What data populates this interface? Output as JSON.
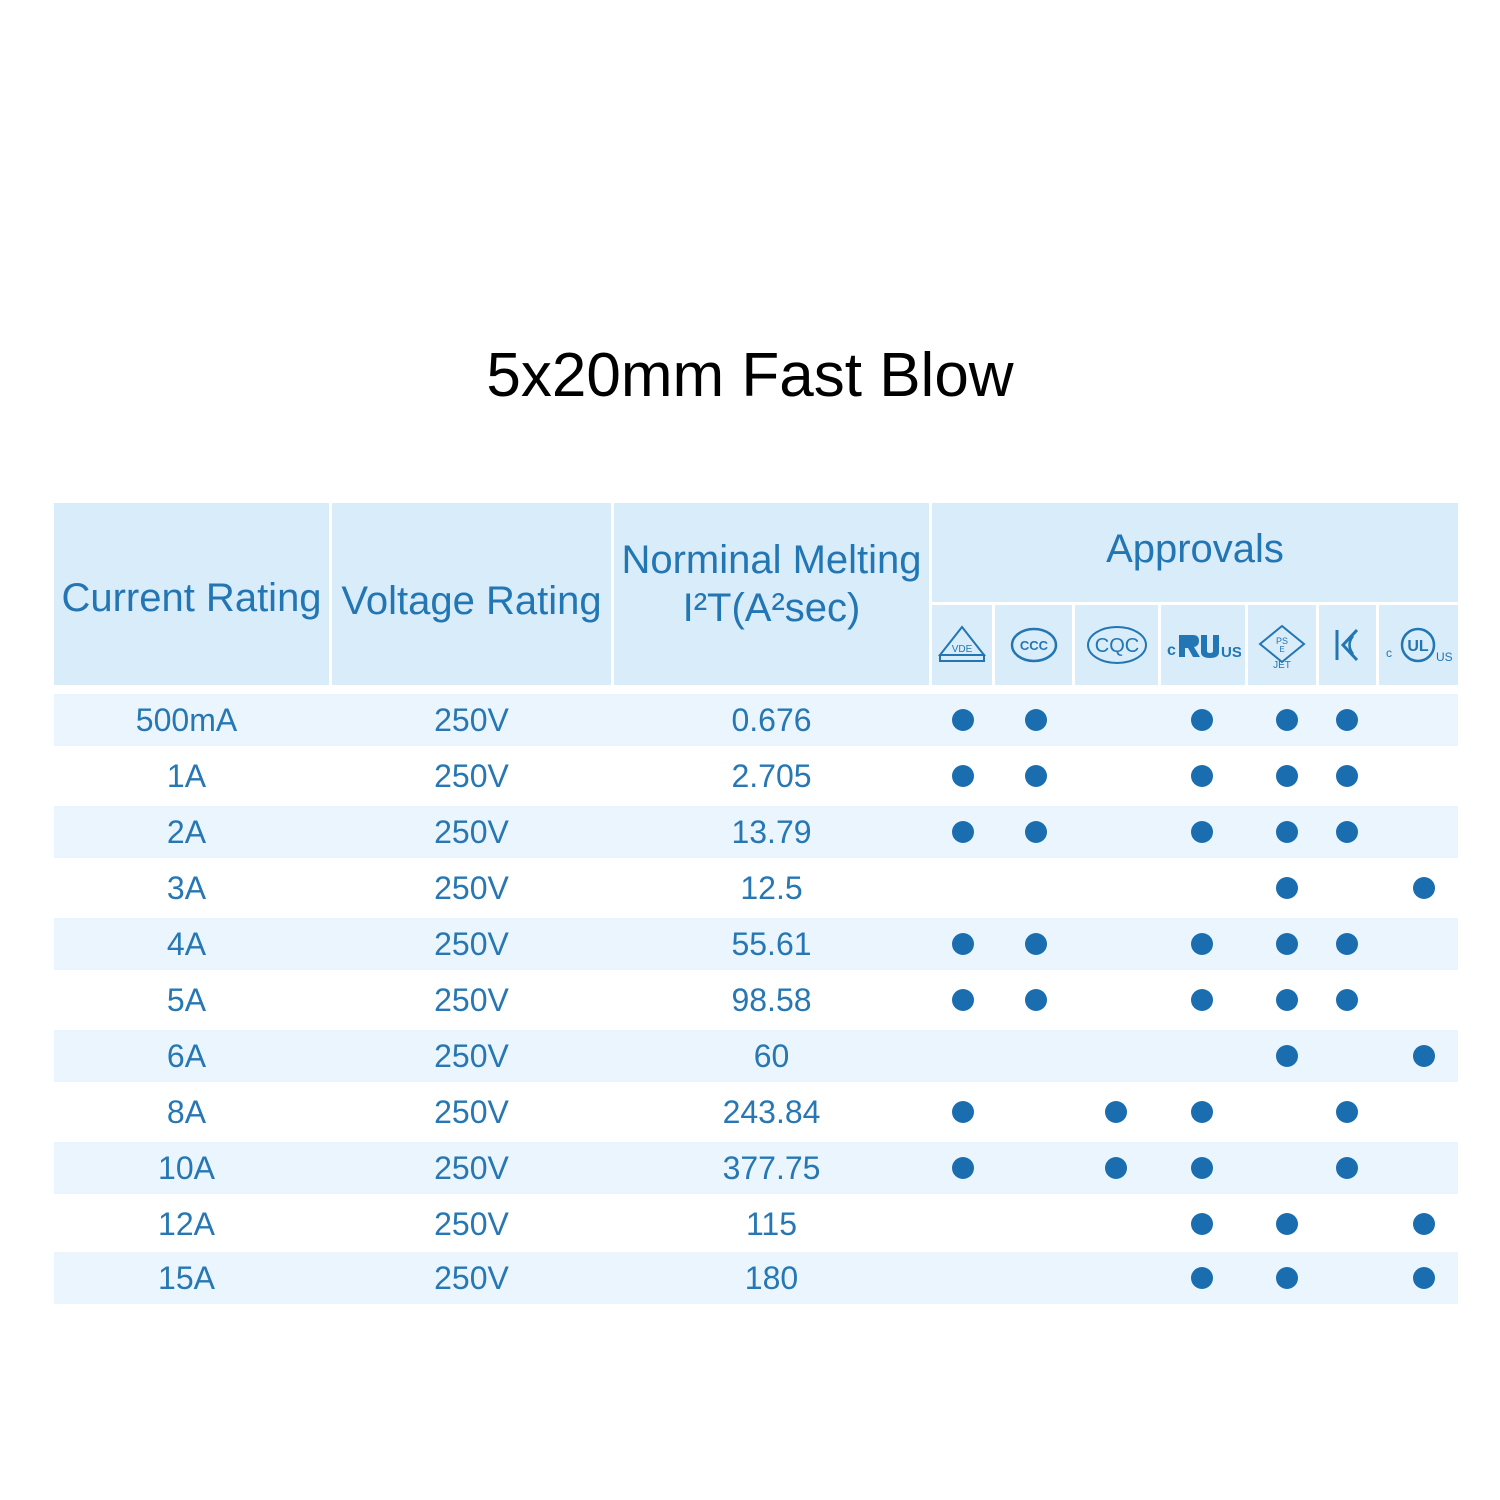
{
  "title": "5x20mm Fast Blow",
  "headers": {
    "current": "Current Rating",
    "voltage": "Voltage Rating",
    "melting_line1": "Norminal Melting",
    "melting_line2": "I²T(A²sec)",
    "approvals": "Approvals"
  },
  "approval_icons": [
    {
      "name": "vde-icon",
      "text": "VDE"
    },
    {
      "name": "ccc-icon",
      "text": "CCC"
    },
    {
      "name": "cqc-icon",
      "text": "CQC"
    },
    {
      "name": "ur-icon",
      "text": "US"
    },
    {
      "name": "pse-icon",
      "text": "JET"
    },
    {
      "name": "kc-icon",
      "text": "KC"
    },
    {
      "name": "ul-icon",
      "text": "US"
    }
  ],
  "rows": [
    {
      "current": "500mA",
      "voltage": "250V",
      "melting": "0.676",
      "approvals": [
        1,
        1,
        0,
        1,
        1,
        1,
        0
      ]
    },
    {
      "current": "1A",
      "voltage": "250V",
      "melting": "2.705",
      "approvals": [
        1,
        1,
        0,
        1,
        1,
        1,
        0
      ]
    },
    {
      "current": "2A",
      "voltage": "250V",
      "melting": "13.79",
      "approvals": [
        1,
        1,
        0,
        1,
        1,
        1,
        0
      ]
    },
    {
      "current": "3A",
      "voltage": "250V",
      "melting": "12.5",
      "approvals": [
        0,
        0,
        0,
        0,
        1,
        0,
        1
      ]
    },
    {
      "current": "4A",
      "voltage": "250V",
      "melting": "55.61",
      "approvals": [
        1,
        1,
        0,
        1,
        1,
        1,
        0
      ]
    },
    {
      "current": "5A",
      "voltage": "250V",
      "melting": "98.58",
      "approvals": [
        1,
        1,
        0,
        1,
        1,
        1,
        0
      ]
    },
    {
      "current": "6A",
      "voltage": "250V",
      "melting": "60",
      "approvals": [
        0,
        0,
        0,
        0,
        1,
        0,
        1
      ]
    },
    {
      "current": "8A",
      "voltage": "250V",
      "melting": "243.84",
      "approvals": [
        1,
        0,
        1,
        1,
        0,
        1,
        0
      ]
    },
    {
      "current": "10A",
      "voltage": "250V",
      "melting": "377.75",
      "approvals": [
        1,
        0,
        1,
        1,
        0,
        1,
        0
      ]
    },
    {
      "current": "12A",
      "voltage": "250V",
      "melting": "115",
      "approvals": [
        0,
        0,
        0,
        1,
        1,
        0,
        1
      ]
    },
    {
      "current": "15A",
      "voltage": "250V",
      "melting": "180",
      "approvals": [
        0,
        0,
        0,
        1,
        1,
        0,
        1
      ]
    }
  ],
  "colors": {
    "header_bg": "#d9ecfa",
    "text": "#2677b3",
    "dot": "#1a6eb0",
    "row_shade": "#eaf5fd"
  }
}
